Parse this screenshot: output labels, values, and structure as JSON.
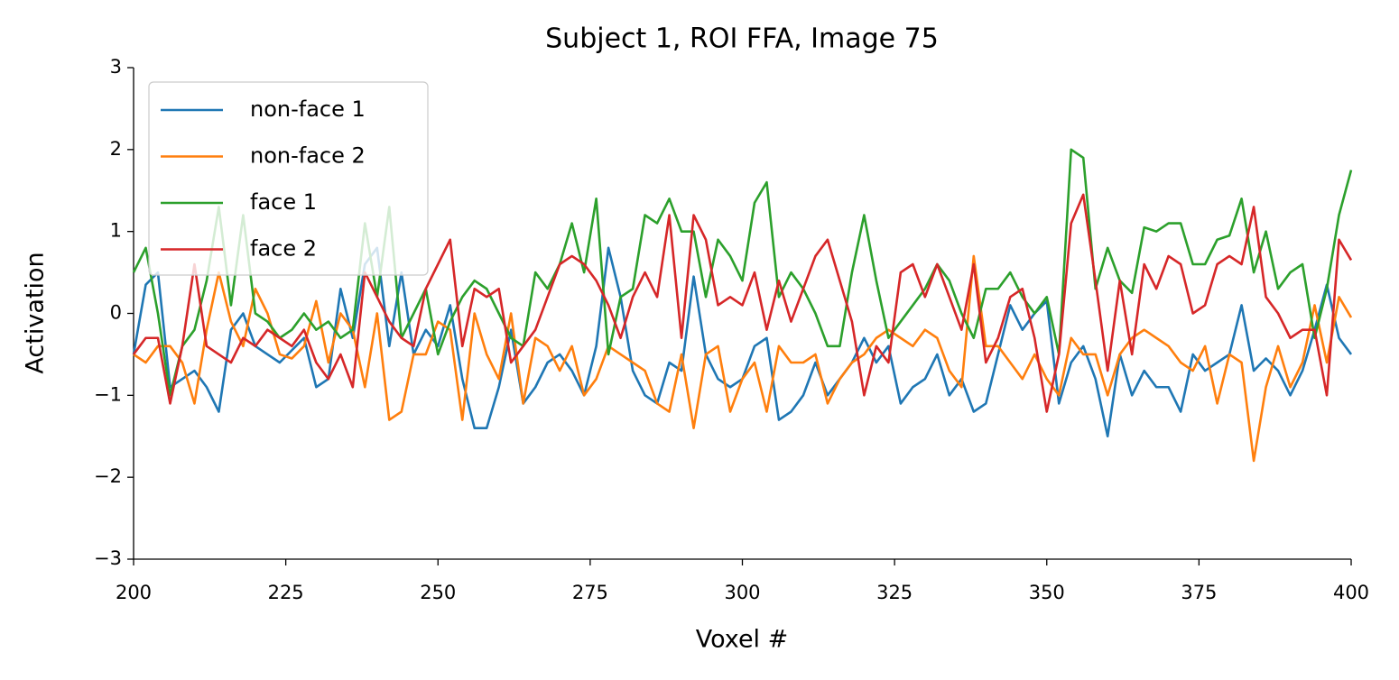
{
  "chart_data": {
    "type": "line",
    "title": "Subject 1, ROI FFA, Image 75",
    "xlabel": "Voxel #",
    "ylabel": "Activation",
    "x": [
      200,
      202,
      204,
      206,
      208,
      210,
      212,
      214,
      216,
      218,
      220,
      222,
      224,
      226,
      228,
      230,
      232,
      234,
      236,
      238,
      240,
      242,
      244,
      246,
      248,
      250,
      252,
      254,
      256,
      258,
      260,
      262,
      264,
      266,
      268,
      270,
      272,
      274,
      276,
      278,
      280,
      282,
      284,
      286,
      288,
      290,
      292,
      294,
      296,
      298,
      300,
      302,
      304,
      306,
      308,
      310,
      312,
      314,
      316,
      318,
      320,
      322,
      324,
      326,
      328,
      330,
      332,
      334,
      336,
      338,
      340,
      342,
      344,
      346,
      348,
      350,
      352,
      354,
      356,
      358,
      360,
      362,
      364,
      366,
      368,
      370,
      372,
      374,
      376,
      378,
      380,
      382,
      384,
      386,
      388,
      390,
      392,
      394,
      396,
      398,
      400
    ],
    "series": [
      {
        "name": "non-face 1",
        "color": "#1f77b4",
        "values": [
          -0.5,
          0.35,
          0.5,
          -0.9,
          -0.8,
          -0.7,
          -0.9,
          -1.2,
          -0.2,
          0.0,
          -0.4,
          -0.5,
          -0.6,
          -0.45,
          -0.3,
          -0.9,
          -0.8,
          0.3,
          -0.3,
          0.6,
          0.8,
          -0.4,
          0.5,
          -0.5,
          -0.2,
          -0.4,
          0.1,
          -0.8,
          -1.4,
          -1.4,
          -0.9,
          -0.2,
          -1.1,
          -0.9,
          -0.6,
          -0.5,
          -0.7,
          -1.0,
          -0.4,
          0.8,
          0.2,
          -0.7,
          -1.0,
          -1.1,
          -0.6,
          -0.7,
          0.45,
          -0.5,
          -0.8,
          -0.9,
          -0.8,
          -0.4,
          -0.3,
          -1.3,
          -1.2,
          -1.0,
          -0.6,
          -1.0,
          -0.8,
          -0.6,
          -0.3,
          -0.6,
          -0.4,
          -1.1,
          -0.9,
          -0.8,
          -0.5,
          -1.0,
          -0.8,
          -1.2,
          -1.1,
          -0.5,
          0.1,
          -0.2,
          0.0,
          0.15,
          -1.1,
          -0.6,
          -0.4,
          -0.8,
          -1.5,
          -0.5,
          -1.0,
          -0.7,
          -0.9,
          -0.9,
          -1.2,
          -0.5,
          -0.7,
          -0.6,
          -0.5,
          0.1,
          -0.7,
          -0.55,
          -0.7,
          -1.0,
          -0.7,
          -0.2,
          0.35,
          -0.3,
          -0.5
        ]
      },
      {
        "name": "non-face 2",
        "color": "#ff7f0e",
        "values": [
          -0.5,
          -0.6,
          -0.4,
          -0.4,
          -0.6,
          -1.1,
          -0.2,
          0.5,
          -0.1,
          -0.4,
          0.3,
          0.0,
          -0.5,
          -0.55,
          -0.4,
          0.15,
          -0.6,
          0.0,
          -0.2,
          -0.9,
          0.0,
          -1.3,
          -1.2,
          -0.5,
          -0.5,
          -0.1,
          -0.2,
          -1.3,
          0.0,
          -0.5,
          -0.8,
          0.0,
          -1.1,
          -0.3,
          -0.4,
          -0.7,
          -0.4,
          -1.0,
          -0.8,
          -0.4,
          -0.5,
          -0.6,
          -0.7,
          -1.1,
          -1.2,
          -0.5,
          -1.4,
          -0.5,
          -0.4,
          -1.2,
          -0.8,
          -0.6,
          -1.2,
          -0.4,
          -0.6,
          -0.6,
          -0.5,
          -1.1,
          -0.8,
          -0.6,
          -0.5,
          -0.3,
          -0.2,
          -0.3,
          -0.4,
          -0.2,
          -0.3,
          -0.7,
          -0.9,
          0.7,
          -0.4,
          -0.4,
          -0.6,
          -0.8,
          -0.5,
          -0.8,
          -1.0,
          -0.3,
          -0.5,
          -0.5,
          -1.0,
          -0.5,
          -0.3,
          -0.2,
          -0.3,
          -0.4,
          -0.6,
          -0.7,
          -0.4,
          -1.1,
          -0.5,
          -0.6,
          -1.8,
          -0.9,
          -0.4,
          -0.9,
          -0.6,
          0.1,
          -0.6,
          0.2,
          -0.05
        ]
      },
      {
        "name": "face 1",
        "color": "#2ca02c",
        "values": [
          0.5,
          0.8,
          0.0,
          -1.0,
          -0.4,
          -0.2,
          0.4,
          1.3,
          0.1,
          1.2,
          0.0,
          -0.1,
          -0.3,
          -0.2,
          0.0,
          -0.2,
          -0.1,
          -0.3,
          -0.2,
          1.1,
          0.2,
          1.3,
          -0.3,
          0.0,
          0.3,
          -0.5,
          -0.1,
          0.2,
          0.4,
          0.3,
          0.0,
          -0.3,
          -0.4,
          0.5,
          0.3,
          0.6,
          1.1,
          0.5,
          1.4,
          -0.5,
          0.2,
          0.3,
          1.2,
          1.1,
          1.4,
          1.0,
          1.0,
          0.2,
          0.9,
          0.7,
          0.4,
          1.35,
          1.6,
          0.2,
          0.5,
          0.3,
          0.0,
          -0.4,
          -0.4,
          0.5,
          1.2,
          0.4,
          -0.3,
          -0.1,
          0.1,
          0.3,
          0.6,
          0.4,
          0.0,
          -0.3,
          0.3,
          0.3,
          0.5,
          0.2,
          0.0,
          0.2,
          -0.5,
          2.0,
          1.9,
          0.3,
          0.8,
          0.4,
          0.25,
          1.05,
          1.0,
          1.1,
          1.1,
          0.6,
          0.6,
          0.9,
          0.95,
          1.4,
          0.5,
          1.0,
          0.3,
          0.5,
          0.6,
          -0.3,
          0.3,
          1.2,
          1.75
        ]
      },
      {
        "name": "face 2",
        "color": "#d62728",
        "values": [
          -0.5,
          -0.3,
          -0.3,
          -1.1,
          -0.4,
          0.6,
          -0.4,
          -0.5,
          -0.6,
          -0.3,
          -0.4,
          -0.2,
          -0.3,
          -0.4,
          -0.2,
          -0.6,
          -0.8,
          -0.5,
          -0.9,
          0.5,
          0.2,
          -0.1,
          -0.3,
          -0.4,
          0.3,
          0.6,
          0.9,
          -0.4,
          0.3,
          0.2,
          0.3,
          -0.6,
          -0.4,
          -0.2,
          0.2,
          0.6,
          0.7,
          0.6,
          0.4,
          0.1,
          -0.3,
          0.2,
          0.5,
          0.2,
          1.2,
          -0.3,
          1.2,
          0.9,
          0.1,
          0.2,
          0.1,
          0.5,
          -0.2,
          0.4,
          -0.1,
          0.3,
          0.7,
          0.9,
          0.4,
          -0.1,
          -1.0,
          -0.4,
          -0.6,
          0.5,
          0.6,
          0.2,
          0.6,
          0.2,
          -0.2,
          0.6,
          -0.6,
          -0.3,
          0.2,
          0.3,
          -0.3,
          -1.2,
          -0.5,
          1.1,
          1.45,
          0.4,
          -0.7,
          0.4,
          -0.5,
          0.6,
          0.3,
          0.7,
          0.6,
          0.0,
          0.1,
          0.6,
          0.7,
          0.6,
          1.3,
          0.2,
          0.0,
          -0.3,
          -0.2,
          -0.2,
          -1.0,
          0.9,
          0.65
        ]
      }
    ],
    "xlim": [
      200,
      400
    ],
    "xticks": [
      200,
      225,
      250,
      275,
      300,
      325,
      350,
      375,
      400
    ],
    "ylim": [
      -3,
      3
    ],
    "yticks": [
      {
        "value": -3,
        "label": "−3"
      },
      {
        "value": -2,
        "label": "−2"
      },
      {
        "value": -1,
        "label": "−1"
      },
      0,
      1,
      2,
      3
    ],
    "legend": "upper left"
  }
}
